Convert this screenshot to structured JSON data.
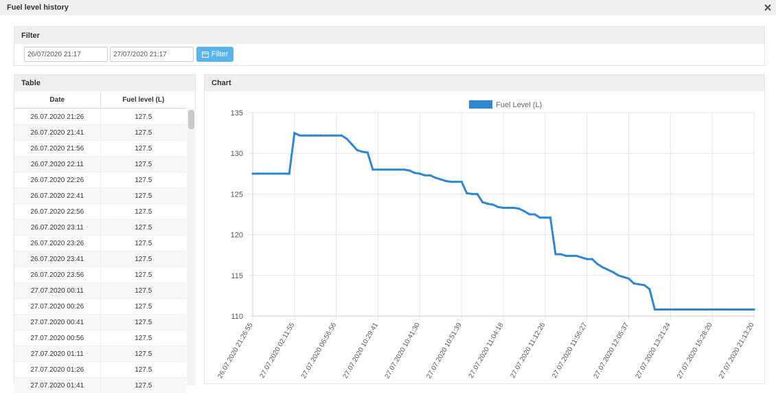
{
  "header": {
    "title": "Fuel level history"
  },
  "filter": {
    "title": "Filter",
    "from": "26/07/2020 21:17",
    "to": "27/07/2020 21:17",
    "button": "Filter"
  },
  "table": {
    "title": "Table",
    "columns": [
      "Date",
      "Fuel level (L)"
    ],
    "rows": [
      [
        "26.07.2020 21:26",
        "127.5"
      ],
      [
        "26.07.2020 21:41",
        "127.5"
      ],
      [
        "26.07.2020 21:56",
        "127.5"
      ],
      [
        "26.07.2020 22:11",
        "127.5"
      ],
      [
        "26.07.2020 22:26",
        "127.5"
      ],
      [
        "26.07.2020 22:41",
        "127.5"
      ],
      [
        "26.07.2020 22:56",
        "127.5"
      ],
      [
        "26.07.2020 23:11",
        "127.5"
      ],
      [
        "26.07.2020 23:26",
        "127.5"
      ],
      [
        "26.07.2020 23:41",
        "127.5"
      ],
      [
        "26.07.2020 23:56",
        "127.5"
      ],
      [
        "27.07.2020 00:11",
        "127.5"
      ],
      [
        "27.07.2020 00:26",
        "127.5"
      ],
      [
        "27.07.2020 00:41",
        "127.5"
      ],
      [
        "27.07.2020 00:56",
        "127.5"
      ],
      [
        "27.07.2020 01:11",
        "127.5"
      ],
      [
        "27.07.2020 01:26",
        "127.5"
      ],
      [
        "27.07.2020 01:41",
        "127.5"
      ]
    ]
  },
  "chart_panel": {
    "title": "Chart"
  },
  "chart_data": {
    "type": "line",
    "categories": [
      "26.07.2020 21:26:55",
      null,
      null,
      null,
      null,
      null,
      null,
      null,
      "27.07.2020 02:11:55",
      null,
      null,
      null,
      null,
      null,
      null,
      null,
      "27.07.2020 06:56:56",
      null,
      null,
      null,
      null,
      null,
      null,
      null,
      "27.07.2020 10:29:41",
      null,
      null,
      null,
      null,
      null,
      null,
      null,
      "27.07.2020 10:41:30",
      null,
      null,
      null,
      null,
      null,
      null,
      null,
      "27.07.2020 10:51:39",
      null,
      null,
      null,
      null,
      null,
      null,
      null,
      "27.07.2020 11:04:18",
      null,
      null,
      null,
      null,
      null,
      null,
      null,
      "27.07.2020 11:12:26",
      null,
      null,
      null,
      null,
      null,
      null,
      null,
      "27.07.2020 11:56:27",
      null,
      null,
      null,
      null,
      null,
      null,
      null,
      "27.07.2020 12:05:37",
      null,
      null,
      null,
      null,
      null,
      null,
      null,
      "27.07.2020 13:21:24",
      null,
      null,
      null,
      null,
      null,
      null,
      null,
      "27.07.2020 15:28:20",
      null,
      null,
      null,
      null,
      null,
      null,
      null,
      "27.07.2020 21:13:20"
    ],
    "series": [
      {
        "name": "Fuel Level (L)",
        "color": "#2f86d3",
        "values": [
          127.5,
          127.5,
          127.5,
          127.5,
          127.5,
          127.5,
          127.5,
          127.5,
          132.5,
          132.2,
          132.2,
          132.2,
          132.2,
          132.2,
          132.2,
          132.2,
          132.2,
          132.2,
          131.8,
          131.1,
          130.4,
          130.2,
          130.1,
          128.0,
          128.0,
          128.0,
          128.0,
          128.0,
          128.0,
          128.0,
          127.9,
          127.6,
          127.5,
          127.3,
          127.3,
          127.0,
          126.8,
          126.6,
          126.5,
          126.5,
          126.5,
          125.1,
          125.0,
          125.0,
          124.0,
          123.8,
          123.7,
          123.4,
          123.3,
          123.3,
          123.3,
          123.2,
          122.9,
          122.5,
          122.5,
          122.1,
          122.1,
          122.1,
          117.6,
          117.6,
          117.4,
          117.4,
          117.4,
          117.2,
          117.0,
          117.0,
          116.4,
          116.0,
          115.7,
          115.4,
          115.0,
          114.8,
          114.6,
          114.0,
          113.9,
          113.8,
          113.3,
          110.8,
          110.8,
          110.8,
          110.8,
          110.8,
          110.8,
          110.8,
          110.8,
          110.8,
          110.8,
          110.8,
          110.8,
          110.8,
          110.8,
          110.8,
          110.8,
          110.8,
          110.8,
          110.8,
          110.8
        ]
      }
    ],
    "ylim": [
      110,
      135
    ],
    "yticks": [
      110,
      115,
      120,
      125,
      130,
      135
    ],
    "grid": true,
    "legend": "top"
  }
}
